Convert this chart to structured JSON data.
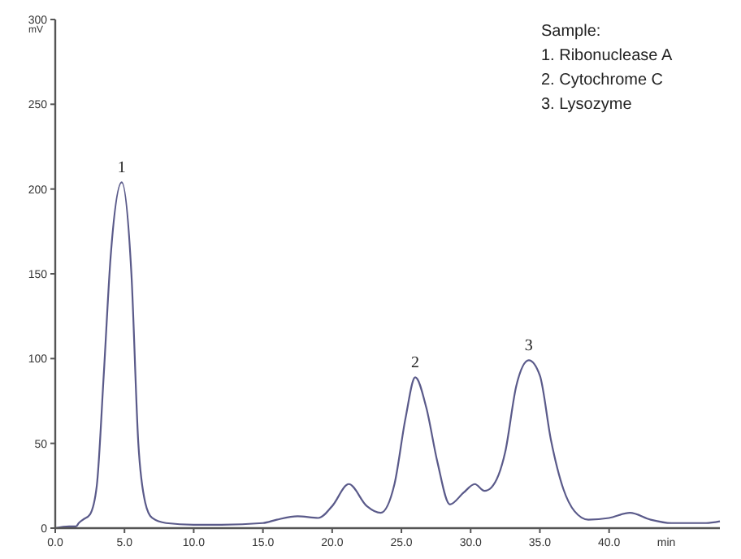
{
  "chart_data": {
    "type": "line",
    "xlabel": "min",
    "ylabel": "mV",
    "x": [
      0,
      1,
      1.5,
      1.7,
      2,
      2.5,
      3,
      3.5,
      4,
      4.8,
      5.5,
      6,
      6.5,
      7,
      8,
      10,
      12,
      15,
      16,
      17.5,
      19,
      20,
      21.2,
      22.5,
      23.5,
      24.5,
      25.3,
      26,
      26.8,
      27.6,
      28.5,
      29.5,
      30.3,
      31,
      31.5,
      32.5,
      33.3,
      34.2,
      35,
      35.8,
      36.7,
      37.5,
      38.5,
      40,
      41.5,
      43,
      44.5,
      47,
      48
    ],
    "series": [
      {
        "color": "#5a5a8a",
        "values": [
          0,
          1,
          1,
          3,
          5,
          8,
          25,
          90,
          160,
          204,
          150,
          50,
          15,
          6,
          3,
          2,
          2,
          3,
          5,
          7,
          6,
          13,
          26,
          13,
          9,
          26,
          65,
          89,
          71,
          39,
          14,
          21,
          26,
          22,
          24,
          45,
          84,
          99,
          90,
          52,
          23,
          10,
          5,
          6,
          9,
          5,
          3,
          3,
          4
        ]
      }
    ],
    "xlim": [
      0,
      48
    ],
    "xticks": [
      {
        "value": 0,
        "label": "0.0"
      },
      {
        "value": 5,
        "label": "5.0"
      },
      {
        "value": 10,
        "label": "10.0"
      },
      {
        "value": 15,
        "label": "15.0"
      },
      {
        "value": 20,
        "label": "20.0"
      },
      {
        "value": 25,
        "label": "25.0"
      },
      {
        "value": 30,
        "label": "30.0"
      },
      {
        "value": 35,
        "label": "35.0"
      },
      {
        "value": 40,
        "label": "40.0"
      }
    ],
    "ylim": [
      0,
      300
    ],
    "yticks": [
      0,
      50,
      100,
      150,
      200,
      250,
      300
    ],
    "grid": false,
    "marker": "none",
    "line_style": "solid",
    "annotations": [
      "Sample:",
      "1. Ribonuclease A",
      "2. Cytochrome C",
      "3. Lysozyme",
      {
        "text": "1",
        "x": 4.8,
        "y": 204
      },
      {
        "text": "2",
        "x": 26,
        "y": 89
      },
      {
        "text": "3",
        "x": 34.2,
        "y": 99
      }
    ]
  }
}
